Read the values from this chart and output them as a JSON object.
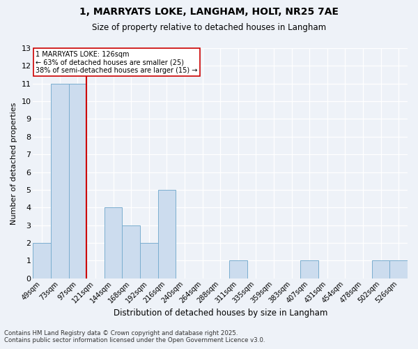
{
  "title": "1, MARRYATS LOKE, LANGHAM, HOLT, NR25 7AE",
  "subtitle": "Size of property relative to detached houses in Langham",
  "xlabel": "Distribution of detached houses by size in Langham",
  "ylabel": "Number of detached properties",
  "categories": [
    "49sqm",
    "73sqm",
    "97sqm",
    "121sqm",
    "144sqm",
    "168sqm",
    "192sqm",
    "216sqm",
    "240sqm",
    "264sqm",
    "288sqm",
    "311sqm",
    "335sqm",
    "359sqm",
    "383sqm",
    "407sqm",
    "431sqm",
    "454sqm",
    "478sqm",
    "502sqm",
    "526sqm"
  ],
  "values": [
    2,
    11,
    11,
    0,
    4,
    3,
    2,
    5,
    0,
    0,
    0,
    1,
    0,
    0,
    0,
    1,
    0,
    0,
    0,
    1,
    1
  ],
  "bar_color": "#ccdcee",
  "bar_edge_color": "#7aaecf",
  "vline_x_idx": 2.5,
  "vline_color": "#cc0000",
  "annotation_text": "1 MARRYATS LOKE: 126sqm\n← 63% of detached houses are smaller (25)\n38% of semi-detached houses are larger (15) →",
  "annotation_box_color": "#ffffff",
  "annotation_box_edge": "#cc0000",
  "ylim": [
    0,
    13
  ],
  "yticks": [
    0,
    1,
    2,
    3,
    4,
    5,
    6,
    7,
    8,
    9,
    10,
    11,
    12,
    13
  ],
  "background_color": "#eef2f8",
  "grid_color": "#ffffff",
  "footer_line1": "Contains HM Land Registry data © Crown copyright and database right 2025.",
  "footer_line2": "Contains public sector information licensed under the Open Government Licence v3.0."
}
